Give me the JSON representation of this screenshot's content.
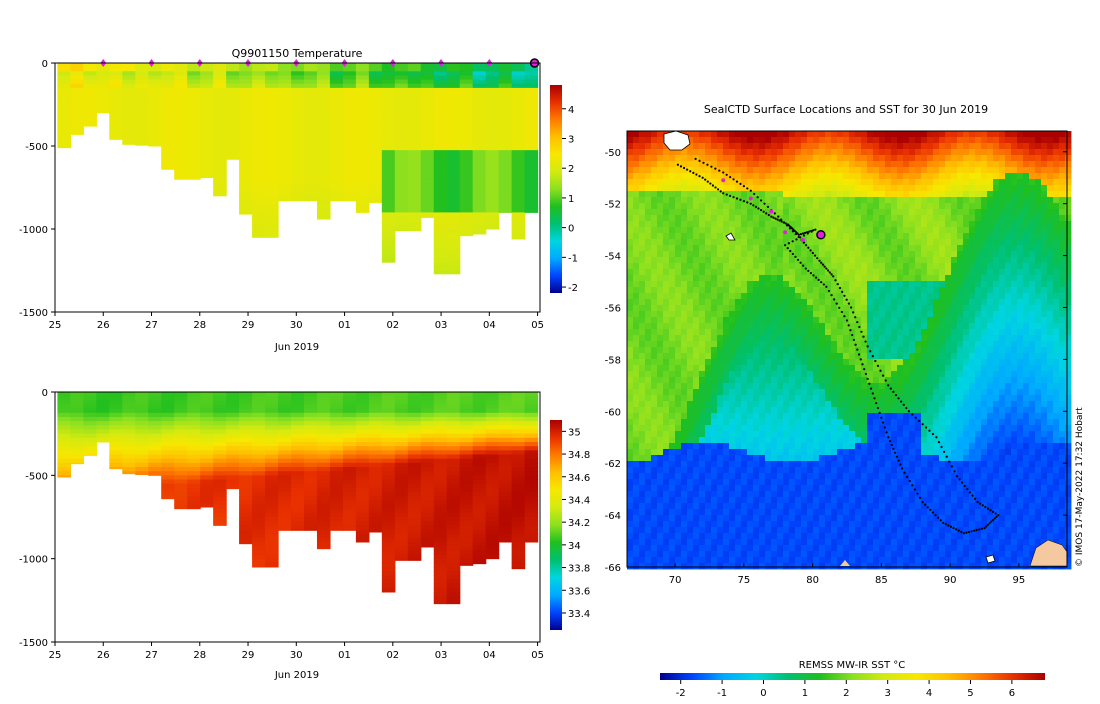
{
  "chart_data": [
    {
      "type": "heatmap",
      "title": "Q9901150  Temperature",
      "xlabel": "Jun 2019",
      "ylabel": "",
      "x_ticks": [
        "25",
        "26",
        "27",
        "28",
        "29",
        "30",
        "01",
        "02",
        "03",
        "04",
        "05"
      ],
      "y_ticks": [
        0,
        -500,
        -1000,
        -1500
      ],
      "ylim": [
        -1500,
        0
      ],
      "colorbar_ticks": [
        4,
        3,
        2,
        1,
        0,
        -1,
        -2
      ],
      "colorbar_range": [
        -2.2,
        4.8
      ],
      "palette": [
        "#00008f",
        "#0044ff",
        "#00aaff",
        "#00d5e0",
        "#00c070",
        "#1fbf1f",
        "#8ce020",
        "#d4ea10",
        "#f6e800",
        "#ffc000",
        "#ff7a00",
        "#e83000",
        "#aa0000"
      ],
      "profile_max_depth_m": [
        510,
        430,
        380,
        300,
        460,
        490,
        495,
        500,
        640,
        700,
        700,
        690,
        800,
        580,
        910,
        1050,
        1050,
        830,
        830,
        830,
        940,
        830,
        830,
        900,
        840,
        1200,
        1010,
        1010,
        930,
        1270,
        1270,
        1040,
        1030,
        1000,
        900,
        1060,
        900
      ],
      "surface_markers_day": [
        26,
        27,
        28,
        29,
        30,
        31,
        32,
        33,
        34
      ],
      "current_marker_day": 35
    },
    {
      "type": "heatmap",
      "title": "",
      "xlabel": "Jun 2019",
      "x_ticks": [
        "25",
        "26",
        "27",
        "28",
        "29",
        "30",
        "01",
        "02",
        "03",
        "04",
        "05"
      ],
      "y_ticks": [
        0,
        -500,
        -1000,
        -1500
      ],
      "ylim": [
        -1500,
        0
      ],
      "colorbar_ticks": [
        35,
        34.8,
        34.6,
        34.4,
        34.2,
        34,
        33.8,
        33.6,
        33.4
      ],
      "colorbar_range": [
        33.25,
        35.1
      ],
      "palette": [
        "#00008f",
        "#0044ff",
        "#00aaff",
        "#00d5e0",
        "#00c070",
        "#1fbf1f",
        "#8ce020",
        "#d4ea10",
        "#f6e800",
        "#ffc000",
        "#ff7a00",
        "#e83000",
        "#aa0000"
      ]
    },
    {
      "type": "heatmap",
      "title": "SealCTD Surface Locations and SST for 30 Jun 2019",
      "x_ticks": [
        70,
        75,
        80,
        85,
        90,
        95
      ],
      "xlim": [
        66.5,
        98.5
      ],
      "y_ticks": [
        -50,
        -52,
        -54,
        -56,
        -58,
        -60,
        -62,
        -64,
        -66
      ],
      "ylim": [
        -66,
        -49.2
      ],
      "track": [
        [
          70.2,
          -50.5
        ],
        [
          72.0,
          -51.0
        ],
        [
          73.5,
          -51.6
        ],
        [
          75.5,
          -52.0
        ],
        [
          77.0,
          -52.5
        ],
        [
          78.2,
          -52.8
        ],
        [
          79.0,
          -53.2
        ],
        [
          80.2,
          -53.0
        ],
        [
          78.0,
          -53.6
        ],
        [
          79.5,
          -54.5
        ],
        [
          81.0,
          -55.2
        ],
        [
          82.5,
          -56.5
        ],
        [
          83.5,
          -58.0
        ],
        [
          84.5,
          -59.5
        ],
        [
          85.5,
          -61.0
        ],
        [
          86.5,
          -62.2
        ],
        [
          88.0,
          -63.5
        ],
        [
          89.5,
          -64.3
        ],
        [
          91.0,
          -64.7
        ],
        [
          92.5,
          -64.5
        ],
        [
          93.5,
          -64.0
        ],
        [
          92.0,
          -63.5
        ],
        [
          90.5,
          -62.5
        ],
        [
          89.0,
          -61.0
        ],
        [
          87.0,
          -60.0
        ],
        [
          85.5,
          -59.0
        ],
        [
          84.0,
          -57.5
        ],
        [
          82.8,
          -56.0
        ],
        [
          81.5,
          -54.8
        ],
        [
          80.5,
          -54.2
        ],
        [
          79.2,
          -53.4
        ],
        [
          77.5,
          -52.5
        ],
        [
          75.5,
          -51.5
        ],
        [
          73.5,
          -50.8
        ],
        [
          71.2,
          -50.2
        ]
      ],
      "recent_locations": [
        [
          73.5,
          -51.1
        ],
        [
          75.5,
          -51.8
        ],
        [
          77.0,
          -52.3
        ],
        [
          78.0,
          -53.1
        ],
        [
          79.3,
          -53.4
        ]
      ],
      "current_location": [
        80.6,
        -53.2
      ],
      "colorbar": {
        "label": "REMSS MW-IR SST °C",
        "ticks": [
          -2,
          -1,
          0,
          1,
          2,
          3,
          4,
          5,
          6
        ],
        "range": [
          -2.5,
          6.8
        ]
      },
      "credit": "© IMOS 17-May-2022 17:32 Hobart"
    }
  ]
}
